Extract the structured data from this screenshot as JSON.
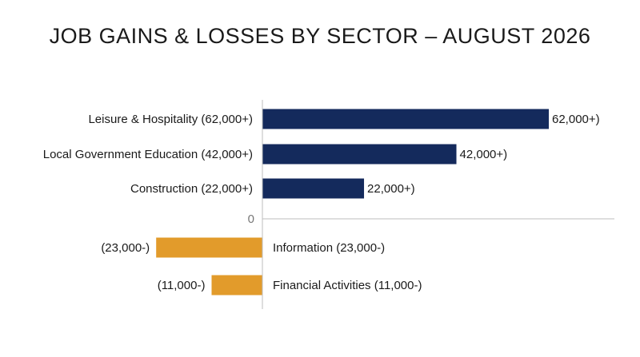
{
  "chart_data": {
    "type": "bar",
    "orientation": "horizontal",
    "title": "JOB GAINS & LOSSES BY SECTOR – AUGUST 2026",
    "xlabel": "",
    "ylabel": "",
    "grid": false,
    "categories": [
      "Leisure & Hospitality (62,000+)",
      "Local Government Education (42,000+)",
      "Construction (22,000+)",
      "Information (23,000-)",
      "Financial Activities (11,000-)"
    ],
    "values": [
      62000,
      42000,
      22000,
      -23000,
      -11000
    ],
    "data_labels": [
      "62,000+)",
      "42,000+)",
      "22,000+)",
      "(23,000-)",
      "(11,000-)"
    ],
    "zero_tick_label": "0",
    "colors": {
      "positive": "#142a5c",
      "negative": "#e29b2b",
      "axis": "#bdbdbd",
      "text": "#1a1a1a",
      "tick": "#777777"
    }
  }
}
